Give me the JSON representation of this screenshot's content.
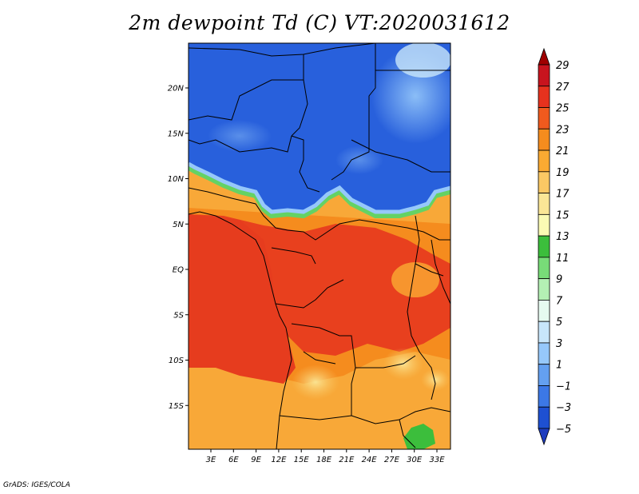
{
  "title": "2m dewpoint Td (C) VT:2020031612",
  "credit": "GrADS: IGES/COLA",
  "map": {
    "lat_ticks": [
      {
        "value": 20,
        "label": "20N"
      },
      {
        "value": 15,
        "label": "15N"
      },
      {
        "value": 10,
        "label": "10N"
      },
      {
        "value": 5,
        "label": "5N"
      },
      {
        "value": 0,
        "label": "EQ"
      },
      {
        "value": -5,
        "label": "5S"
      },
      {
        "value": -10,
        "label": "10S"
      },
      {
        "value": -15,
        "label": "15S"
      }
    ],
    "lon_ticks": [
      {
        "value": 3,
        "label": "3E"
      },
      {
        "value": 6,
        "label": "6E"
      },
      {
        "value": 9,
        "label": "9E"
      },
      {
        "value": 12,
        "label": "12E"
      },
      {
        "value": 15,
        "label": "15E"
      },
      {
        "value": 18,
        "label": "18E"
      },
      {
        "value": 21,
        "label": "21E"
      },
      {
        "value": 24,
        "label": "24E"
      },
      {
        "value": 27,
        "label": "27E"
      },
      {
        "value": 30,
        "label": "30E"
      },
      {
        "value": 33,
        "label": "33E"
      }
    ]
  },
  "colorbar": {
    "levels": [
      "29",
      "27",
      "25",
      "23",
      "21",
      "19",
      "17",
      "15",
      "13",
      "11",
      "9",
      "7",
      "5",
      "3",
      "1",
      "−1",
      "−3",
      "−5"
    ],
    "colors": [
      "#a00000",
      "#c8141e",
      "#e6321e",
      "#f05a1e",
      "#f58c1e",
      "#faaa32",
      "#fac864",
      "#fae696",
      "#fafab4",
      "#3cbe3c",
      "#78dc78",
      "#b4f0b4",
      "#e6faf0",
      "#c8e6fa",
      "#96c8fa",
      "#64a0f0",
      "#3c78e6",
      "#1e50d2",
      "#1e3cbe"
    ]
  }
}
